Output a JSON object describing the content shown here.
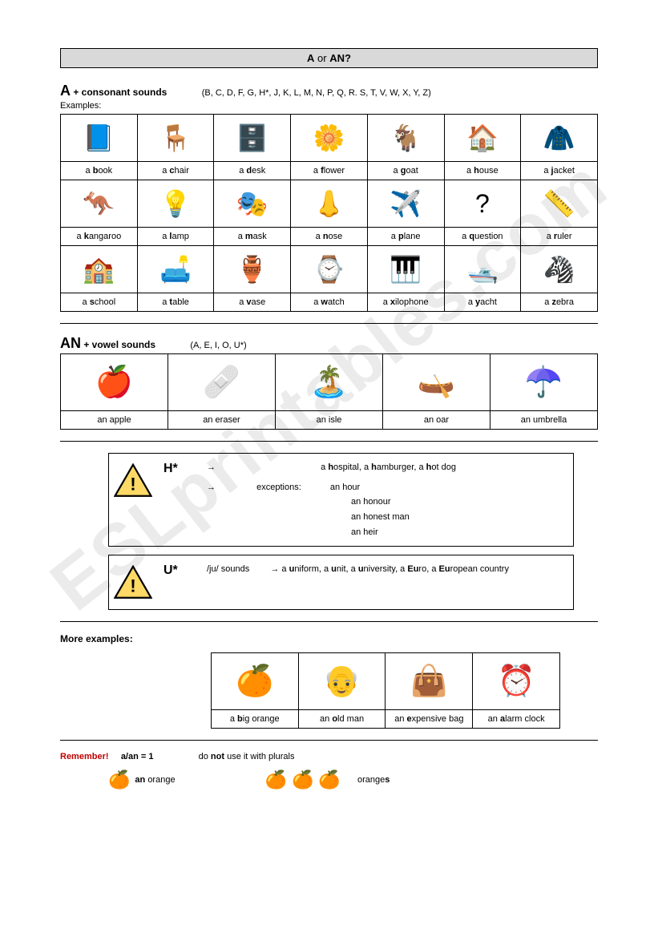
{
  "title": {
    "a": "A",
    "or": " or ",
    "an": "AN?"
  },
  "sectionA": {
    "big": "A",
    "rule": " + consonant sounds",
    "letters": "(B, C, D, F, G, H*, J, K, L, M, N, P, Q, R. S, T, V, W, X, Y, Z)",
    "examples_label": "Examples:",
    "rows": [
      [
        {
          "icon": "📘",
          "pre": "a ",
          "b": "b",
          "post": "ook"
        },
        {
          "icon": "🪑",
          "pre": "a ",
          "b": "c",
          "post": "hair"
        },
        {
          "icon": "🗄️",
          "pre": "a ",
          "b": "d",
          "post": "esk"
        },
        {
          "icon": "🌼",
          "pre": "a ",
          "b": "f",
          "post": "lower"
        },
        {
          "icon": "🐐",
          "pre": "a ",
          "b": "g",
          "post": "oat"
        },
        {
          "icon": "🏠",
          "pre": "a ",
          "b": "h",
          "post": "ouse"
        },
        {
          "icon": "🧥",
          "pre": "a ",
          "b": "j",
          "post": "acket"
        }
      ],
      [
        {
          "icon": "🦘",
          "pre": "a ",
          "b": "k",
          "post": "angaroo"
        },
        {
          "icon": "💡",
          "pre": "a ",
          "b": "l",
          "post": "amp"
        },
        {
          "icon": "🎭",
          "pre": "a ",
          "b": "m",
          "post": "ask"
        },
        {
          "icon": "👃",
          "pre": "a ",
          "b": "n",
          "post": "ose"
        },
        {
          "icon": "✈️",
          "pre": "a ",
          "b": "p",
          "post": "lane"
        },
        {
          "icon": "?",
          "pre": "a ",
          "b": "q",
          "post": "uestion"
        },
        {
          "icon": "📏",
          "pre": "a ",
          "b": "r",
          "post": "uler"
        }
      ],
      [
        {
          "icon": "🏫",
          "pre": "a ",
          "b": "s",
          "post": "chool"
        },
        {
          "icon": "🛋️",
          "pre": "a ",
          "b": "t",
          "post": "able"
        },
        {
          "icon": "🏺",
          "pre": "a ",
          "b": "v",
          "post": "ase"
        },
        {
          "icon": "⌚",
          "pre": "a ",
          "b": "w",
          "post": "atch"
        },
        {
          "icon": "🎹",
          "pre": "a ",
          "b": "x",
          "post": "ilophone"
        },
        {
          "icon": "🛥️",
          "pre": "a ",
          "b": "y",
          "post": "acht"
        },
        {
          "icon": "🦓",
          "pre": "a ",
          "b": "z",
          "post": "ebra"
        }
      ]
    ]
  },
  "sectionAN": {
    "big": "AN",
    "rule": " + vowel sounds",
    "letters": "(A, E, I, O, U*)",
    "row": [
      {
        "icon": "🍎",
        "label": "an apple"
      },
      {
        "icon": "🩹",
        "label": "an eraser"
      },
      {
        "icon": "🏝️",
        "label": "an isle"
      },
      {
        "icon": "🛶",
        "label": "an oar"
      },
      {
        "icon": "☂️",
        "label": "an umbrella"
      }
    ]
  },
  "noteH": {
    "letter": "H*",
    "line1": {
      "arrow": "→",
      "text_pre": "a ",
      "b1": "h",
      "t1": "ospital, a ",
      "b2": "h",
      "t2": "amburger, a ",
      "b3": "h",
      "t3": "ot dog"
    },
    "exc_label": "exceptions:",
    "exceptions": [
      "an hour",
      "an honour",
      "an honest man",
      "an heir"
    ]
  },
  "noteU": {
    "letter": "U*",
    "sound": "/ju/ sounds",
    "arrow": "→",
    "text": "a <b>u</b>niform, a <b>u</b>nit, a <b>u</b>niversity, a <b>Eu</b>ro, a <b>Eu</b>ropean country"
  },
  "moreExamples": {
    "heading": "More examples:",
    "row": [
      {
        "icon": "🍊",
        "pre": "a ",
        "b": "b",
        "post": "ig orange"
      },
      {
        "icon": "👴",
        "pre": "an ",
        "b": "o",
        "post": "ld man"
      },
      {
        "icon": "👜",
        "pre": "an ",
        "b": "e",
        "post": "xpensive bag"
      },
      {
        "icon": "⏰",
        "pre": "an ",
        "b": "a",
        "post": "larm clock"
      }
    ]
  },
  "remember": {
    "red": "Remember!",
    "eq": "a/an = 1",
    "plural_pre": "do ",
    "plural_b": "not",
    "plural_post": " use it with plurals",
    "single": {
      "icon": "🍊",
      "pre": "",
      "b": "an ",
      "post": "orange"
    },
    "plural": {
      "icons": [
        "🍊",
        "🍊",
        "🍊"
      ],
      "pre": "orange",
      "b": "s",
      "post": ""
    }
  },
  "watermark": "ESLprintables.com"
}
